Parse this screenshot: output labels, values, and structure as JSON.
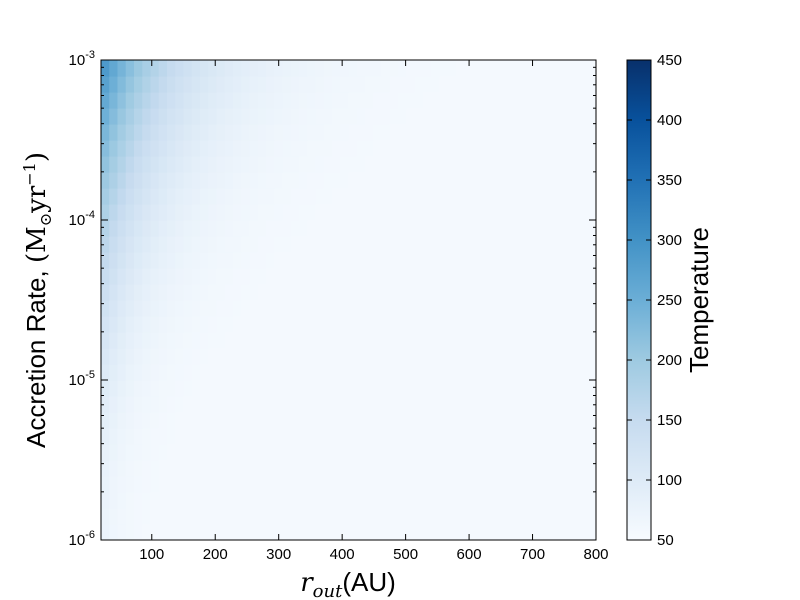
{
  "chart_data": {
    "type": "heatmap",
    "xlabel": {
      "var": "r",
      "sub": "out",
      "unit": "(AU)"
    },
    "ylabel": {
      "text": "Accretion Rate, ",
      "math": "(M",
      "sun": "⊙",
      "unit": "yr",
      "exp": "−1",
      "close": ")"
    },
    "colorbar_label": "Temperature",
    "xlim": [
      20,
      800
    ],
    "ylim_log10": [
      -6,
      -3
    ],
    "yscale": "log",
    "x_ticks": [
      100,
      200,
      300,
      400,
      500,
      600,
      700,
      800
    ],
    "y_ticks": [
      {
        "base": "10",
        "exp": "-6"
      },
      {
        "base": "10",
        "exp": "-5"
      },
      {
        "base": "10",
        "exp": "-4"
      },
      {
        "base": "10",
        "exp": "-3"
      }
    ],
    "colorbar_ticks": [
      50,
      100,
      150,
      200,
      250,
      300,
      350,
      400,
      450
    ],
    "clim": [
      50,
      450
    ],
    "colormap": [
      "#f7fbff",
      "#deebf7",
      "#c6dbef",
      "#9ecae1",
      "#6baed6",
      "#4292c6",
      "#2171b5",
      "#08519c",
      "#08306b"
    ]
  }
}
